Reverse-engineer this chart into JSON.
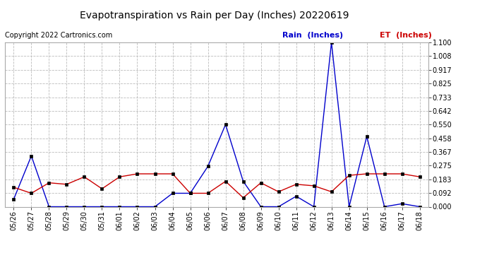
{
  "title": "Evapotranspiration vs Rain per Day (Inches) 20220619",
  "copyright": "Copyright 2022 Cartronics.com",
  "legend_rain": "Rain  (Inches)",
  "legend_et": "ET  (Inches)",
  "x_labels": [
    "05/26",
    "05/27",
    "05/28",
    "05/29",
    "05/30",
    "05/31",
    "06/01",
    "06/02",
    "06/03",
    "06/04",
    "06/05",
    "06/06",
    "06/07",
    "06/08",
    "06/09",
    "06/10",
    "06/11",
    "06/12",
    "06/13",
    "06/14",
    "06/15",
    "06/16",
    "06/17",
    "06/18"
  ],
  "rain": [
    0.05,
    0.34,
    0.0,
    0.0,
    0.0,
    0.0,
    0.0,
    0.0,
    0.0,
    0.09,
    0.09,
    0.27,
    0.55,
    0.17,
    0.0,
    0.0,
    0.07,
    0.0,
    1.1,
    0.0,
    0.47,
    0.0,
    0.02,
    0.0
  ],
  "et": [
    0.13,
    0.09,
    0.16,
    0.15,
    0.2,
    0.12,
    0.2,
    0.22,
    0.22,
    0.22,
    0.09,
    0.09,
    0.17,
    0.06,
    0.16,
    0.1,
    0.15,
    0.14,
    0.1,
    0.21,
    0.22,
    0.22,
    0.22,
    0.2
  ],
  "rain_color": "#0000cc",
  "et_color": "#cc0000",
  "bg_color": "#ffffff",
  "grid_color": "#bbbbbb",
  "title_fontsize": 10,
  "copyright_fontsize": 7,
  "tick_fontsize": 7,
  "legend_fontsize": 8,
  "ylim": [
    0.0,
    1.1
  ],
  "yticks": [
    0.0,
    0.092,
    0.183,
    0.275,
    0.367,
    0.458,
    0.55,
    0.642,
    0.733,
    0.825,
    0.917,
    1.008,
    1.1
  ]
}
